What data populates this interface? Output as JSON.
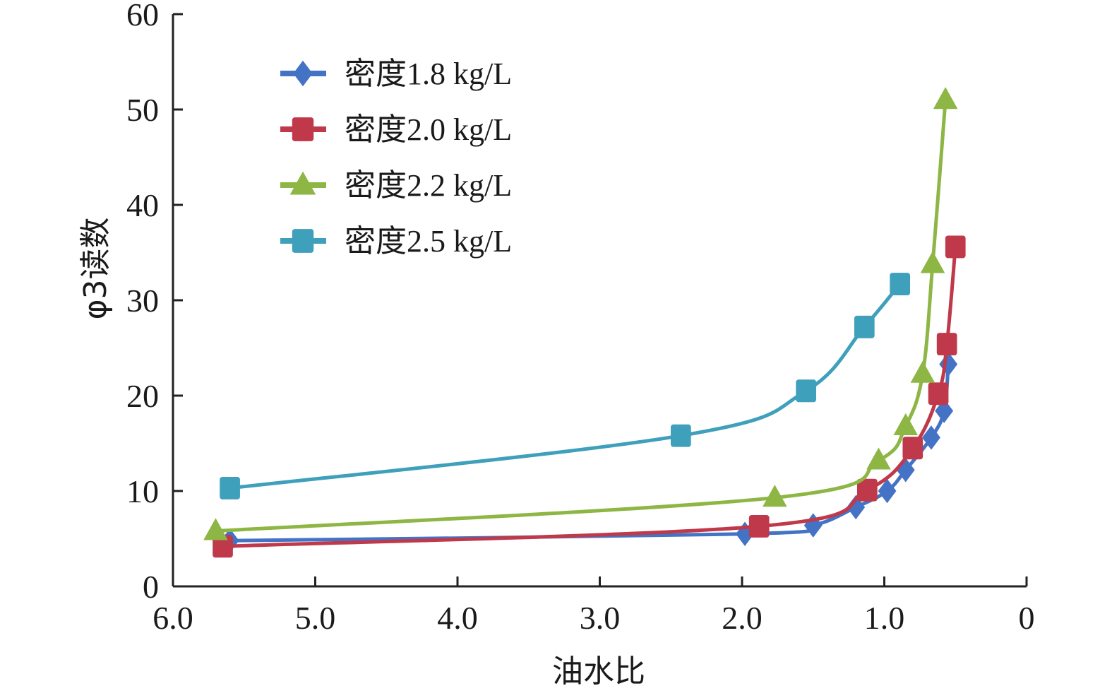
{
  "chart_data": {
    "type": "line",
    "title": "",
    "xlabel": "油水比",
    "ylabel": "φ3读数",
    "xlim": [
      6.0,
      0
    ],
    "ylim": [
      0,
      60
    ],
    "x_ticks": [
      "6.0",
      "5.0",
      "4.0",
      "3.0",
      "2.0",
      "1.0",
      "0"
    ],
    "y_ticks": [
      "0",
      "10",
      "20",
      "30",
      "40",
      "50",
      "60"
    ],
    "legend_position": "top-left",
    "grid": false,
    "series": [
      {
        "name": "密度1.8 kg/L",
        "color": "#4472c4",
        "marker": "diamond",
        "points": [
          [
            5.6,
            4.8
          ],
          [
            1.98,
            5.5
          ],
          [
            1.5,
            6.4
          ],
          [
            1.2,
            8.3
          ],
          [
            0.98,
            10.0
          ],
          [
            0.85,
            12.2
          ],
          [
            0.67,
            15.6
          ],
          [
            0.58,
            18.4
          ],
          [
            0.55,
            23.3
          ]
        ]
      },
      {
        "name": "密度2.0 kg/L",
        "color": "#c0394a",
        "marker": "square",
        "points": [
          [
            5.65,
            4.2
          ],
          [
            1.88,
            6.3
          ],
          [
            1.12,
            10.1
          ],
          [
            0.8,
            14.5
          ],
          [
            0.62,
            20.2
          ],
          [
            0.56,
            25.4
          ],
          [
            0.5,
            35.6
          ]
        ]
      },
      {
        "name": "密度2.2 kg/L",
        "color": "#8db644",
        "marker": "triangle",
        "points": [
          [
            5.7,
            5.8
          ],
          [
            1.77,
            9.3
          ],
          [
            1.04,
            13.2
          ],
          [
            0.85,
            16.8
          ],
          [
            0.73,
            22.3
          ],
          [
            0.66,
            33.8
          ],
          [
            0.57,
            51.0
          ]
        ]
      },
      {
        "name": "密度2.5 kg/L",
        "color": "#3ea0bb",
        "marker": "square",
        "points": [
          [
            5.6,
            10.3
          ],
          [
            2.43,
            15.8
          ],
          [
            1.55,
            20.5
          ],
          [
            1.14,
            27.2
          ],
          [
            0.89,
            31.7
          ]
        ]
      }
    ]
  }
}
